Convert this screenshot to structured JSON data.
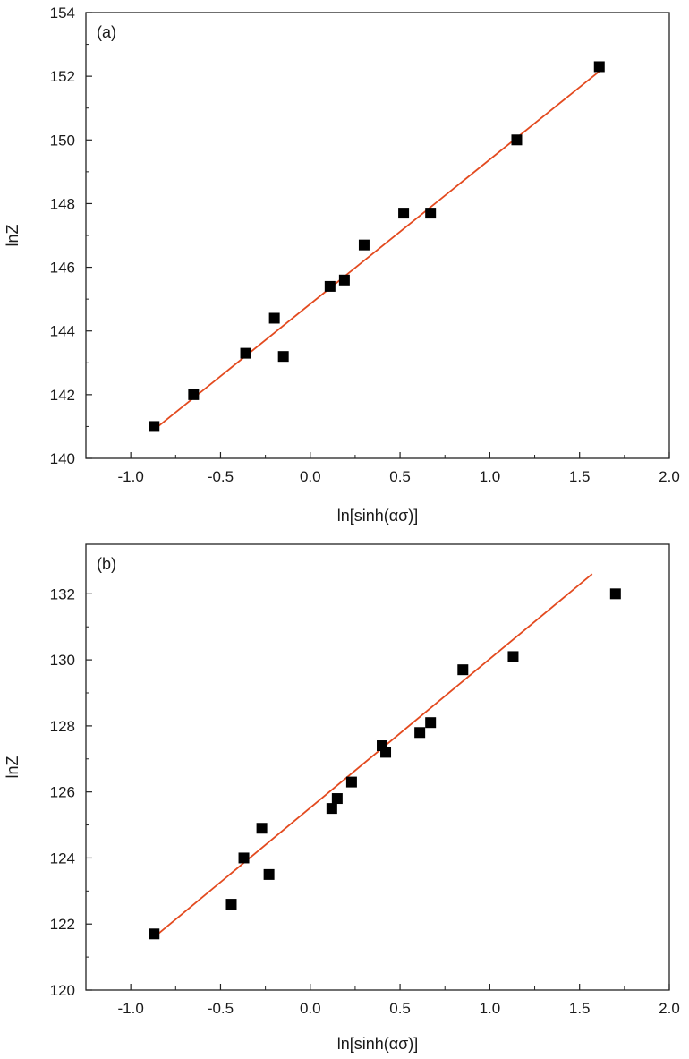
{
  "chart_data": [
    {
      "type": "scatter",
      "panel_label": "(a)",
      "xlabel": "ln[sinh(ασ)]",
      "ylabel": "lnZ",
      "xlim": [
        -1.25,
        2.0
      ],
      "ylim": [
        140,
        154
      ],
      "xticks": [
        -1.0,
        -0.5,
        0.0,
        0.5,
        1.0,
        1.5,
        2.0
      ],
      "xtick_labels": [
        "-1.0",
        "-0.5",
        "0.0",
        "0.5",
        "1.0",
        "1.5",
        "2.0"
      ],
      "yticks": [
        140,
        142,
        144,
        146,
        148,
        150,
        152,
        154
      ],
      "ytick_labels": [
        "140",
        "142",
        "144",
        "146",
        "148",
        "150",
        "152",
        "154"
      ],
      "grid": false,
      "marker_color": "#000000",
      "fit_color": "#e34a1f",
      "points": [
        {
          "x": -0.87,
          "y": 141.0
        },
        {
          "x": -0.65,
          "y": 142.0
        },
        {
          "x": -0.36,
          "y": 143.3
        },
        {
          "x": -0.2,
          "y": 144.4
        },
        {
          "x": -0.15,
          "y": 143.2
        },
        {
          "x": 0.11,
          "y": 145.4
        },
        {
          "x": 0.19,
          "y": 145.6
        },
        {
          "x": 0.3,
          "y": 146.7
        },
        {
          "x": 0.52,
          "y": 147.7
        },
        {
          "x": 0.67,
          "y": 147.7
        },
        {
          "x": 1.15,
          "y": 150.0
        },
        {
          "x": 1.61,
          "y": 152.3
        }
      ],
      "fit_line": {
        "x": [
          -0.87,
          1.62
        ],
        "y": [
          140.9,
          152.2
        ]
      }
    },
    {
      "type": "scatter",
      "panel_label": "(b)",
      "xlabel": "ln[sinh(ασ)]",
      "ylabel": "lnZ",
      "xlim": [
        -1.25,
        2.0
      ],
      "ylim": [
        120,
        133.5
      ],
      "xticks": [
        -1.0,
        -0.5,
        0.0,
        0.5,
        1.0,
        1.5,
        2.0
      ],
      "xtick_labels": [
        "-1.0",
        "-0.5",
        "0.0",
        "0.5",
        "1.0",
        "1.5",
        "2.0"
      ],
      "yticks": [
        120,
        122,
        124,
        126,
        128,
        130,
        132
      ],
      "ytick_labels": [
        "120",
        "122",
        "124",
        "126",
        "128",
        "130",
        "132"
      ],
      "grid": false,
      "marker_color": "#000000",
      "fit_color": "#e34a1f",
      "points": [
        {
          "x": -0.87,
          "y": 121.7
        },
        {
          "x": -0.44,
          "y": 122.6
        },
        {
          "x": -0.37,
          "y": 124.0
        },
        {
          "x": -0.27,
          "y": 124.9
        },
        {
          "x": -0.23,
          "y": 123.5
        },
        {
          "x": 0.12,
          "y": 125.5
        },
        {
          "x": 0.15,
          "y": 125.8
        },
        {
          "x": 0.23,
          "y": 126.3
        },
        {
          "x": 0.4,
          "y": 127.4
        },
        {
          "x": 0.42,
          "y": 127.2
        },
        {
          "x": 0.61,
          "y": 127.8
        },
        {
          "x": 0.67,
          "y": 128.1
        },
        {
          "x": 0.85,
          "y": 129.7
        },
        {
          "x": 1.13,
          "y": 130.1
        },
        {
          "x": 1.7,
          "y": 132.0
        }
      ],
      "fit_line": {
        "x": [
          -0.87,
          1.57
        ],
        "y": [
          121.6,
          132.6
        ]
      }
    }
  ]
}
